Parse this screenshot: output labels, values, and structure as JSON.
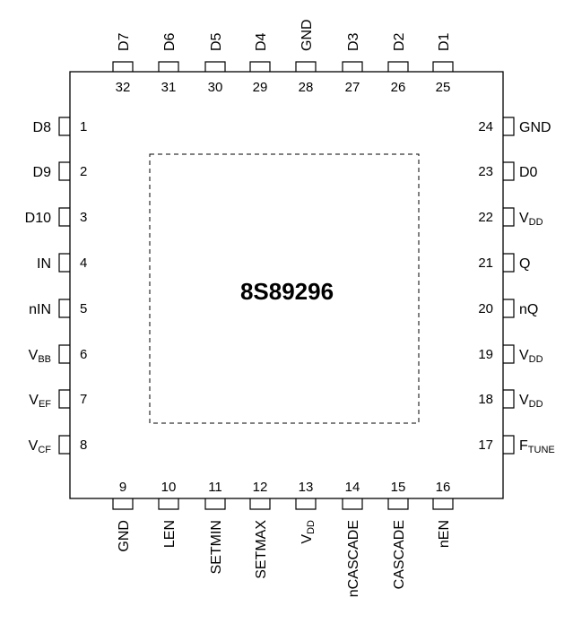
{
  "part_number": "8S89296",
  "pins": {
    "top": [
      {
        "num": "32",
        "name": "D7"
      },
      {
        "num": "31",
        "name": "D6"
      },
      {
        "num": "30",
        "name": "D5"
      },
      {
        "num": "29",
        "name": "D4"
      },
      {
        "num": "28",
        "name": "GND"
      },
      {
        "num": "27",
        "name": "D3"
      },
      {
        "num": "26",
        "name": "D2"
      },
      {
        "num": "25",
        "name": "D1"
      }
    ],
    "left": [
      {
        "num": "1",
        "name": "D8"
      },
      {
        "num": "2",
        "name": "D9"
      },
      {
        "num": "3",
        "name": "D10"
      },
      {
        "num": "4",
        "name": "IN"
      },
      {
        "num": "5",
        "name": "nIN"
      },
      {
        "num": "6",
        "name": "V",
        "sub": "BB"
      },
      {
        "num": "7",
        "name": "V",
        "sub": "EF"
      },
      {
        "num": "8",
        "name": "V",
        "sub": "CF"
      }
    ],
    "right": [
      {
        "num": "24",
        "name": "GND"
      },
      {
        "num": "23",
        "name": "D0"
      },
      {
        "num": "22",
        "name": "V",
        "sub": "DD"
      },
      {
        "num": "21",
        "name": "Q"
      },
      {
        "num": "20",
        "name": "nQ"
      },
      {
        "num": "19",
        "name": "V",
        "sub": "DD"
      },
      {
        "num": "18",
        "name": "V",
        "sub": "DD"
      },
      {
        "num": "17",
        "name": "F",
        "sub": "TUNE"
      }
    ],
    "bottom": [
      {
        "num": "9",
        "name": "GND"
      },
      {
        "num": "10",
        "name": "LEN"
      },
      {
        "num": "11",
        "name": "SETMIN"
      },
      {
        "num": "12",
        "name": "SETMAX"
      },
      {
        "num": "13",
        "name": "V",
        "sub": "DD"
      },
      {
        "num": "14",
        "name": "nCASCADE"
      },
      {
        "num": "15",
        "name": "CASCADE"
      },
      {
        "num": "16",
        "name": "nEN"
      }
    ]
  }
}
